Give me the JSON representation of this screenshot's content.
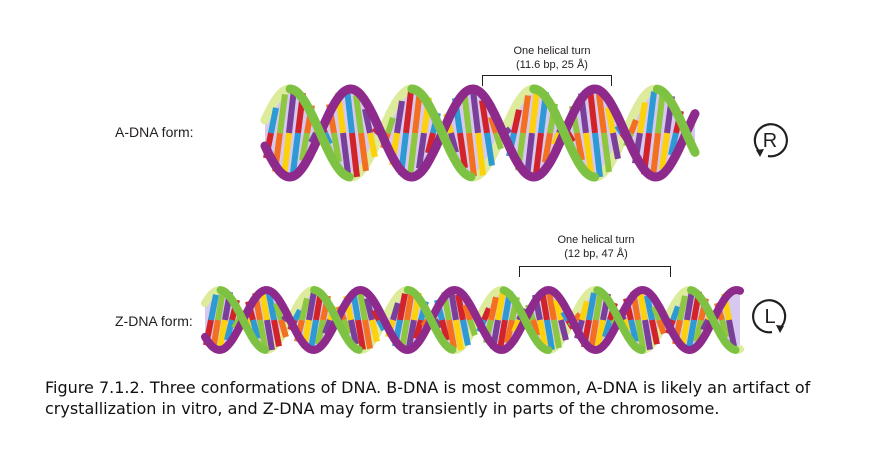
{
  "a_dna": {
    "label": "A-DNA form:",
    "turn_title": "One helical turn",
    "turn_detail": "(11.6 bp, 25 Å)",
    "handedness": "R"
  },
  "z_dna": {
    "label": "Z-DNA form:",
    "turn_title": "One helical turn",
    "turn_detail": "(12 bp, 47 Å)",
    "handedness": "L"
  },
  "caption": "Figure 7.1.2. Three conformations of DNA. B-DNA is most common, A-DNA is likely an artifact of crystallization in vitro, and Z-DNA may form transiently in parts of the chromosome.",
  "colors": {
    "strand_purple": "#8e2a8c",
    "strand_green": "#7dc243",
    "strand_light": "#dcec9c",
    "groove_lavender": "#b59ae0",
    "bases": [
      "#d2232a",
      "#f37021",
      "#fdd20a",
      "#2e9ad4",
      "#8dc63f",
      "#7a3f98"
    ]
  }
}
